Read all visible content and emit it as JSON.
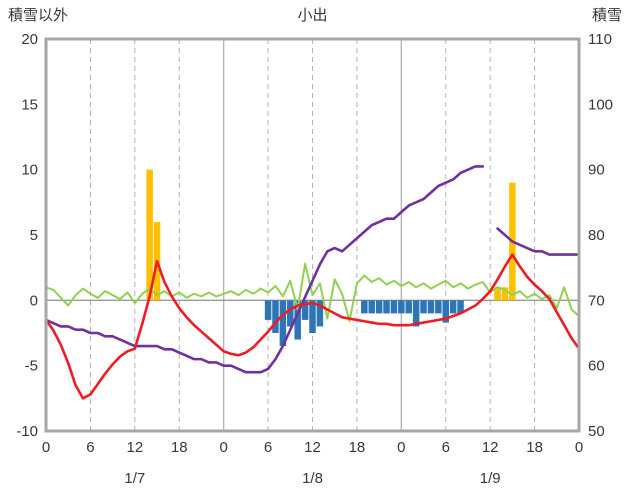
{
  "chart_data": {
    "type": "line",
    "title": "小出",
    "left_axis": {
      "title": "積雪以外",
      "range": [
        -10,
        20
      ],
      "ticks": [
        20,
        15,
        10,
        5,
        0,
        -5,
        -10
      ]
    },
    "right_axis": {
      "title": "積雪",
      "range": [
        50,
        110
      ],
      "ticks": [
        110,
        100,
        90,
        80,
        70,
        60,
        50
      ]
    },
    "x_range": [
      0,
      72
    ],
    "x_ticks": {
      "hours": [
        0,
        6,
        12,
        18,
        24,
        30,
        36,
        42,
        48,
        54,
        60,
        66,
        72
      ],
      "labels": [
        "0",
        "6",
        "12",
        "18",
        "0",
        "6",
        "12",
        "18",
        "0",
        "6",
        "12",
        "18",
        "0"
      ]
    },
    "day_labels": [
      {
        "hour": 12,
        "label": "1/7"
      },
      {
        "hour": 36,
        "label": "1/8"
      },
      {
        "hour": 60,
        "label": "1/9"
      }
    ],
    "style": {
      "grid_color": "#b3b3b3",
      "zero_line_color": "#999999",
      "border_color": "#a6a6a6",
      "text_color": "#383838",
      "bar_width": 6.5
    },
    "series": [
      {
        "name": "orange-bars",
        "type": "bar",
        "axis": "left",
        "color": "#ffc000",
        "values": [
          0,
          0,
          0,
          0,
          0,
          0,
          0,
          0,
          0,
          0,
          0,
          0,
          0,
          0,
          10,
          6,
          0,
          0,
          0,
          0,
          0,
          0,
          0,
          0,
          0,
          0,
          0,
          0,
          0,
          0,
          0,
          0,
          0,
          0,
          0,
          0,
          0,
          0,
          0,
          0,
          0,
          0,
          0,
          0,
          0,
          0,
          0,
          0,
          0,
          0,
          0,
          0,
          0,
          0,
          0,
          0,
          0,
          0,
          0,
          0,
          0,
          1,
          1,
          9,
          0,
          0,
          0,
          0,
          0,
          0,
          0,
          0,
          0
        ]
      },
      {
        "name": "blue-bars",
        "type": "bar",
        "axis": "left",
        "color": "#2e75b6",
        "values": [
          0,
          0,
          0,
          0,
          0,
          0,
          0,
          0,
          0,
          0,
          0,
          0,
          0,
          0,
          0,
          0,
          0,
          0,
          0,
          0,
          0,
          0,
          0,
          0,
          0,
          0,
          0,
          0,
          0,
          0,
          -1.5,
          -2.5,
          -3.5,
          -2,
          -3,
          -1.5,
          -2.5,
          -2,
          0,
          0,
          0,
          0,
          0,
          -1,
          -1,
          -1,
          -1,
          -1,
          -1,
          -1,
          -2,
          -1,
          -1,
          -1,
          -1.7,
          -1,
          -1,
          0,
          0,
          0,
          0,
          0,
          0,
          0,
          0,
          0,
          0,
          0,
          0,
          0,
          0,
          0,
          0
        ]
      },
      {
        "name": "green-line",
        "type": "line",
        "axis": "left",
        "color": "#92d050",
        "width": 2,
        "values": [
          1,
          0.8,
          0.2,
          -0.4,
          0.4,
          0.9,
          0.5,
          0.2,
          0.7,
          0.4,
          0.1,
          0.6,
          -0.2,
          0.5,
          0.9,
          0.4,
          0.7,
          0.3,
          0.6,
          0.2,
          0.5,
          0.3,
          0.6,
          0.3,
          0.5,
          0.7,
          0.4,
          0.8,
          0.5,
          0.9,
          0.6,
          1.1,
          0.3,
          1.5,
          -0.7,
          2.8,
          0.4,
          1.3,
          -1.4,
          1.6,
          0.5,
          -1.6,
          1.3,
          1.9,
          1.4,
          1.7,
          1.2,
          1.5,
          1.1,
          1.4,
          1,
          1.3,
          0.9,
          1.2,
          1.5,
          1,
          1.3,
          0.9,
          1.2,
          1.4,
          0.6,
          1,
          0.8,
          0.4,
          0.7,
          0.2,
          0.5,
          0.1,
          0.4,
          -0.6,
          1,
          -0.7,
          -1.2
        ]
      },
      {
        "name": "purple-line",
        "type": "line",
        "axis": "right",
        "color": "#7030a0",
        "width": 2.6,
        "values": [
          67,
          66.5,
          66,
          66,
          65.5,
          65.5,
          65,
          65,
          64.5,
          64.5,
          64,
          63.5,
          63,
          63,
          63,
          63,
          62.5,
          62.5,
          62,
          61.5,
          61,
          61,
          60.5,
          60.5,
          60,
          60,
          59.5,
          59,
          59,
          59,
          59.5,
          61,
          63,
          65.5,
          68,
          70.5,
          73,
          75.5,
          77.5,
          78,
          77.5,
          78.5,
          79.5,
          80.5,
          81.5,
          82,
          82.5,
          82.5,
          83.5,
          84.5,
          85,
          85.5,
          86.5,
          87.5,
          88,
          88.5,
          89.5,
          90,
          90.5,
          90.5,
          null,
          81,
          80,
          79,
          78.5,
          78,
          77.5,
          77.5,
          77,
          77,
          77,
          77,
          77
        ]
      },
      {
        "name": "red-line",
        "type": "line",
        "axis": "left",
        "color": "#ee1c25",
        "width": 2.6,
        "values": [
          -1.5,
          -2.3,
          -3.4,
          -4.8,
          -6.5,
          -7.5,
          -7.2,
          -6.4,
          -5.6,
          -4.9,
          -4.3,
          -3.9,
          -3.7,
          -1.8,
          0.3,
          3,
          1.4,
          0.3,
          -0.6,
          -1.3,
          -1.9,
          -2.4,
          -2.9,
          -3.4,
          -3.9,
          -4.1,
          -4.2,
          -4,
          -3.6,
          -3,
          -2.4,
          -1.7,
          -1.1,
          -0.7,
          -0.4,
          -0.3,
          -0.2,
          -0.4,
          -0.7,
          -1,
          -1.3,
          -1.4,
          -1.5,
          -1.6,
          -1.7,
          -1.8,
          -1.8,
          -1.9,
          -1.9,
          -1.9,
          -1.8,
          -1.7,
          -1.6,
          -1.5,
          -1.4,
          -1.2,
          -1,
          -0.7,
          -0.4,
          0.1,
          0.7,
          1.6,
          2.6,
          3.5,
          2.6,
          1.8,
          1.2,
          0.7,
          0.1,
          -0.9,
          -1.9,
          -2.9,
          -3.7
        ]
      }
    ]
  }
}
